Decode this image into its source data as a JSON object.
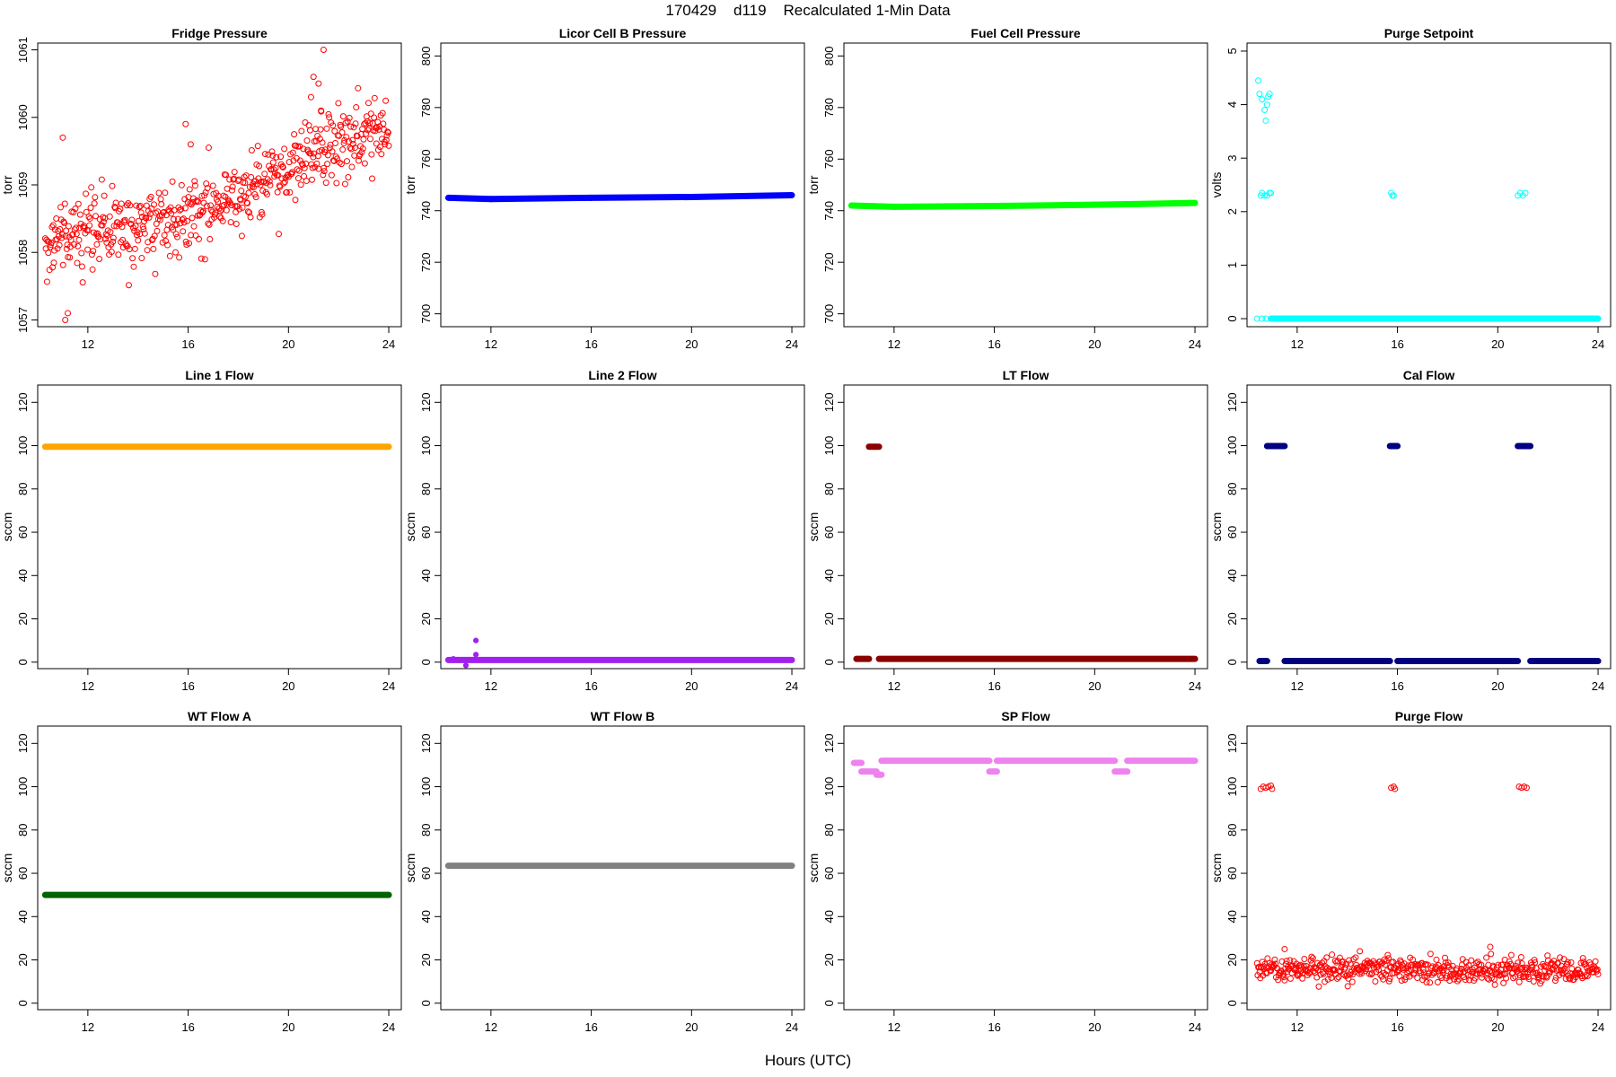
{
  "figure": {
    "title": "170429    d119    Recalculated 1-Min Data",
    "xlabel": "Hours (UTC)"
  },
  "chart_data": [
    {
      "type": "scatter",
      "title": "Fridge Pressure",
      "ylabel": "torr",
      "xlim": [
        10,
        24.5
      ],
      "ylim": [
        1056.9,
        1061.1
      ],
      "xticks": [
        12,
        16,
        20,
        24
      ],
      "yticks": [
        1057,
        1058,
        1059,
        1060,
        1061
      ],
      "color": "#ff0000",
      "marker": "open-circle",
      "series": [
        {
          "kind": "noisy-trend",
          "x_start": 10.3,
          "x_end": 24,
          "n": 560,
          "trend": [
            [
              10.3,
              1058.2
            ],
            [
              12,
              1058.3
            ],
            [
              14,
              1058.4
            ],
            [
              16,
              1058.6
            ],
            [
              18,
              1058.8
            ],
            [
              19.5,
              1059.1
            ],
            [
              20.8,
              1059.4
            ],
            [
              22,
              1059.6
            ],
            [
              24,
              1059.8
            ]
          ],
          "noise": 0.45,
          "excursions": [
            [
              11.1,
              1057.0
            ],
            [
              11.2,
              1057.1
            ],
            [
              11.0,
              1059.7
            ],
            [
              15.9,
              1059.9
            ],
            [
              16.1,
              1059.6
            ],
            [
              21.0,
              1060.6
            ],
            [
              21.2,
              1060.5
            ],
            [
              21.4,
              1061.0
            ],
            [
              20.9,
              1060.3
            ],
            [
              21.3,
              1060.1
            ]
          ]
        }
      ]
    },
    {
      "type": "scatter",
      "title": "Licor Cell B Pressure",
      "ylabel": "torr",
      "xlim": [
        10,
        24.5
      ],
      "ylim": [
        695,
        805
      ],
      "xticks": [
        12,
        16,
        20,
        24
      ],
      "yticks": [
        700,
        720,
        740,
        760,
        780,
        800
      ],
      "color": "#0000ff",
      "marker": "filled-line",
      "series": [
        {
          "kind": "line",
          "x_start": 10.3,
          "x_end": 24,
          "points": [
            [
              10.3,
              745
            ],
            [
              12,
              744.5
            ],
            [
              16,
              745
            ],
            [
              20,
              745.3
            ],
            [
              24,
              746
            ]
          ]
        }
      ]
    },
    {
      "type": "scatter",
      "title": "Fuel Cell Pressure",
      "ylabel": "torr",
      "xlim": [
        10,
        24.5
      ],
      "ylim": [
        695,
        805
      ],
      "xticks": [
        12,
        16,
        20,
        24
      ],
      "yticks": [
        700,
        720,
        740,
        760,
        780,
        800
      ],
      "color": "#00ff00",
      "marker": "filled-line",
      "series": [
        {
          "kind": "line",
          "x_start": 10.3,
          "x_end": 24,
          "points": [
            [
              10.3,
              742
            ],
            [
              12,
              741.5
            ],
            [
              16,
              741.8
            ],
            [
              20,
              742.3
            ],
            [
              24,
              743
            ]
          ]
        }
      ]
    },
    {
      "type": "scatter",
      "title": "Purge Setpoint",
      "ylabel": "volts",
      "xlim": [
        10,
        24.5
      ],
      "ylim": [
        -0.15,
        5.15
      ],
      "xticks": [
        12,
        16,
        20,
        24
      ],
      "yticks": [
        0,
        1,
        2,
        3,
        4,
        5
      ],
      "color": "#00ffff",
      "marker": "open-circle",
      "series": [
        {
          "kind": "points",
          "points": [
            [
              10.45,
              4.45
            ],
            [
              10.5,
              4.2
            ],
            [
              10.6,
              4.1
            ],
            [
              10.7,
              3.9
            ],
            [
              10.75,
              3.7
            ],
            [
              10.8,
              4.0
            ],
            [
              10.85,
              4.15
            ],
            [
              10.9,
              4.2
            ],
            [
              10.55,
              2.3
            ],
            [
              10.6,
              2.35
            ],
            [
              10.7,
              2.3
            ],
            [
              10.8,
              2.3
            ],
            [
              10.9,
              2.35
            ],
            [
              10.95,
              2.35
            ],
            [
              10.4,
              0
            ],
            [
              10.6,
              0
            ],
            [
              10.75,
              0
            ],
            [
              15.75,
              2.35
            ],
            [
              15.8,
              2.3
            ],
            [
              15.85,
              2.3
            ],
            [
              20.8,
              2.3
            ],
            [
              20.9,
              2.35
            ],
            [
              21.0,
              2.3
            ],
            [
              21.1,
              2.35
            ]
          ]
        },
        {
          "kind": "segment",
          "x_start": 10.95,
          "x_end": 24,
          "y": 0
        }
      ]
    },
    {
      "type": "scatter",
      "title": "Line 1 Flow",
      "ylabel": "sccm",
      "xlim": [
        10,
        24.5
      ],
      "ylim": [
        -3,
        128
      ],
      "xticks": [
        12,
        16,
        20,
        24
      ],
      "yticks": [
        0,
        20,
        40,
        60,
        80,
        100,
        120
      ],
      "color": "#ffa500",
      "marker": "filled-line",
      "series": [
        {
          "kind": "segment",
          "x_start": 10.3,
          "x_end": 24,
          "y": 99.5
        }
      ]
    },
    {
      "type": "scatter",
      "title": "Line 2 Flow",
      "ylabel": "sccm",
      "xlim": [
        10,
        24.5
      ],
      "ylim": [
        -3,
        128
      ],
      "xticks": [
        12,
        16,
        20,
        24
      ],
      "yticks": [
        0,
        20,
        40,
        60,
        80,
        100,
        120
      ],
      "color": "#a020f0",
      "marker": "filled-line",
      "series": [
        {
          "kind": "segment",
          "x_start": 10.3,
          "x_end": 24,
          "y": 1
        },
        {
          "kind": "points",
          "points": [
            [
              11.4,
              10
            ],
            [
              11.4,
              3.5
            ],
            [
              11.0,
              -1.5
            ],
            [
              10.5,
              1.5
            ]
          ]
        }
      ]
    },
    {
      "type": "scatter",
      "title": "LT Flow",
      "ylabel": "sccm",
      "xlim": [
        10,
        24.5
      ],
      "ylim": [
        -3,
        128
      ],
      "xticks": [
        12,
        16,
        20,
        24
      ],
      "yticks": [
        0,
        20,
        40,
        60,
        80,
        100,
        120
      ],
      "color": "#8b0000",
      "marker": "filled-line",
      "series": [
        {
          "kind": "segment",
          "x_start": 10.5,
          "x_end": 11.0,
          "y": 1.5
        },
        {
          "kind": "segment",
          "x_start": 11.0,
          "x_end": 11.4,
          "y": 99.5
        },
        {
          "kind": "segment",
          "x_start": 11.4,
          "x_end": 24,
          "y": 1.5
        }
      ]
    },
    {
      "type": "scatter",
      "title": "Cal Flow",
      "ylabel": "sccm",
      "xlim": [
        10,
        24.5
      ],
      "ylim": [
        -3,
        128
      ],
      "xticks": [
        12,
        16,
        20,
        24
      ],
      "yticks": [
        0,
        20,
        40,
        60,
        80,
        100,
        120
      ],
      "color": "#000080",
      "marker": "filled-line",
      "series": [
        {
          "kind": "segment",
          "x_start": 10.5,
          "x_end": 10.8,
          "y": 0.5
        },
        {
          "kind": "segment",
          "x_start": 10.8,
          "x_end": 11.5,
          "y": 99.8
        },
        {
          "kind": "segment",
          "x_start": 11.5,
          "x_end": 15.7,
          "y": 0.5
        },
        {
          "kind": "segment",
          "x_start": 15.7,
          "x_end": 16.0,
          "y": 99.8
        },
        {
          "kind": "segment",
          "x_start": 16.0,
          "x_end": 20.8,
          "y": 0.5
        },
        {
          "kind": "segment",
          "x_start": 20.8,
          "x_end": 21.3,
          "y": 99.8
        },
        {
          "kind": "segment",
          "x_start": 21.3,
          "x_end": 24,
          "y": 0.5
        }
      ]
    },
    {
      "type": "scatter",
      "title": "WT Flow A",
      "ylabel": "sccm",
      "xlim": [
        10,
        24.5
      ],
      "ylim": [
        -3,
        128
      ],
      "xticks": [
        12,
        16,
        20,
        24
      ],
      "yticks": [
        0,
        20,
        40,
        60,
        80,
        100,
        120
      ],
      "color": "#006400",
      "marker": "filled-line",
      "series": [
        {
          "kind": "segment",
          "x_start": 10.3,
          "x_end": 24,
          "y": 50
        }
      ]
    },
    {
      "type": "scatter",
      "title": "WT Flow B",
      "ylabel": "sccm",
      "xlim": [
        10,
        24.5
      ],
      "ylim": [
        -3,
        128
      ],
      "xticks": [
        12,
        16,
        20,
        24
      ],
      "yticks": [
        0,
        20,
        40,
        60,
        80,
        100,
        120
      ],
      "color": "#808080",
      "marker": "filled-line",
      "series": [
        {
          "kind": "segment",
          "x_start": 10.3,
          "x_end": 24,
          "y": 63.5
        }
      ]
    },
    {
      "type": "scatter",
      "title": "SP Flow",
      "ylabel": "sccm",
      "xlim": [
        10,
        24.5
      ],
      "ylim": [
        -3,
        128
      ],
      "xticks": [
        12,
        16,
        20,
        24
      ],
      "yticks": [
        0,
        20,
        40,
        60,
        80,
        100,
        120
      ],
      "color": "#ee82ee",
      "marker": "filled-line",
      "series": [
        {
          "kind": "segment",
          "x_start": 10.4,
          "x_end": 10.7,
          "y": 111
        },
        {
          "kind": "segment",
          "x_start": 10.7,
          "x_end": 11.3,
          "y": 107
        },
        {
          "kind": "segment",
          "x_start": 11.3,
          "x_end": 11.5,
          "y": 105.5
        },
        {
          "kind": "segment",
          "x_start": 11.5,
          "x_end": 15.8,
          "y": 112
        },
        {
          "kind": "segment",
          "x_start": 15.8,
          "x_end": 16.1,
          "y": 107
        },
        {
          "kind": "segment",
          "x_start": 16.1,
          "x_end": 20.8,
          "y": 112
        },
        {
          "kind": "segment",
          "x_start": 20.8,
          "x_end": 21.3,
          "y": 107
        },
        {
          "kind": "segment",
          "x_start": 21.3,
          "x_end": 24,
          "y": 112
        }
      ]
    },
    {
      "type": "scatter",
      "title": "Purge Flow",
      "ylabel": "sccm",
      "xlim": [
        10,
        24.5
      ],
      "ylim": [
        -3,
        128
      ],
      "xticks": [
        12,
        16,
        20,
        24
      ],
      "yticks": [
        0,
        20,
        40,
        60,
        80,
        100,
        120
      ],
      "color": "#ff0000",
      "marker": "open-circle",
      "series": [
        {
          "kind": "noisy-trend",
          "x_start": 10.4,
          "x_end": 24,
          "n": 520,
          "trend": [
            [
              10.4,
              16
            ],
            [
              24,
              15
            ]
          ],
          "noise": 4.5,
          "excursions": [
            [
              19.7,
              26
            ],
            [
              11.5,
              25
            ],
            [
              14.5,
              24
            ]
          ]
        },
        {
          "kind": "points",
          "points": [
            [
              10.55,
              99
            ],
            [
              10.65,
              100
            ],
            [
              10.75,
              99.5
            ],
            [
              10.85,
              100
            ],
            [
              10.95,
              100.5
            ],
            [
              11.0,
              99
            ],
            [
              15.75,
              99.5
            ],
            [
              15.85,
              100
            ],
            [
              15.9,
              99
            ],
            [
              20.85,
              100
            ],
            [
              20.95,
              99.5
            ],
            [
              21.05,
              100
            ],
            [
              21.15,
              99.5
            ]
          ]
        }
      ]
    }
  ]
}
